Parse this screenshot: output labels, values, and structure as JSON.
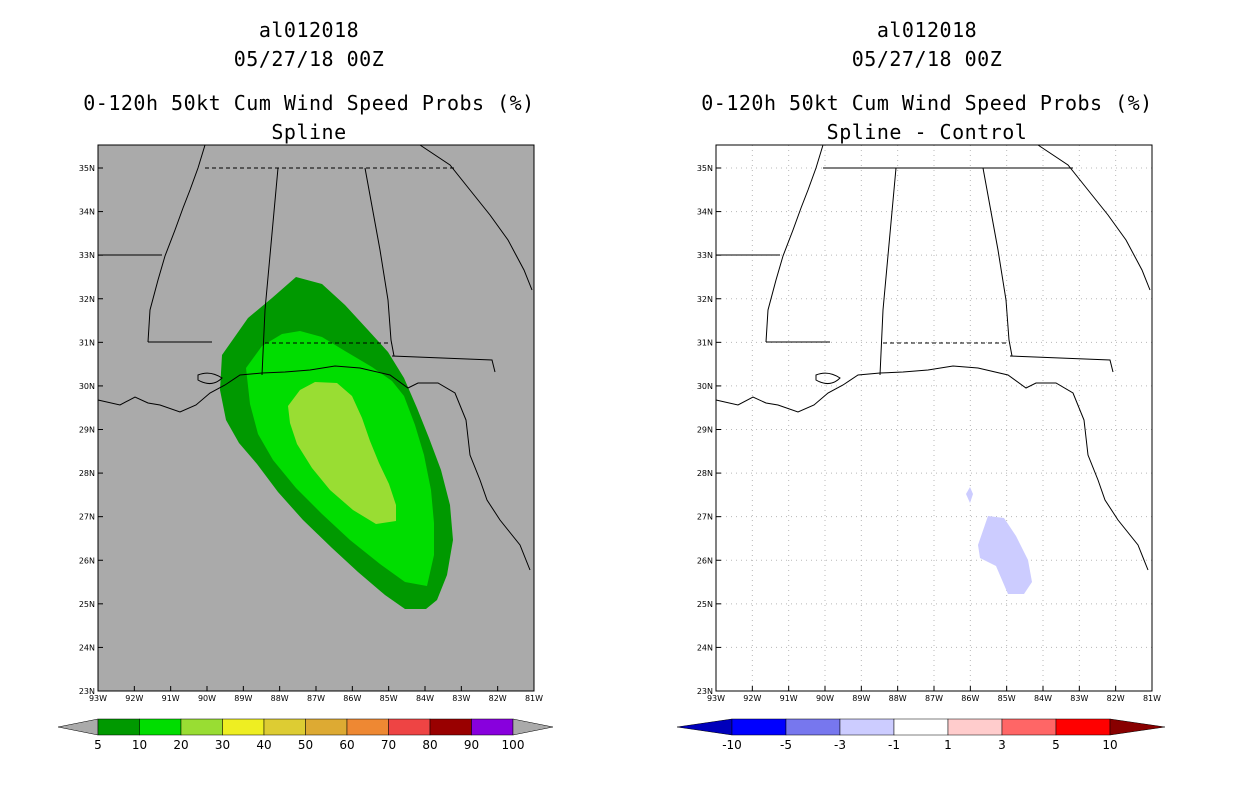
{
  "left": {
    "title_line1": "al012018",
    "title_line2": "05/27/18 00Z",
    "title_line3": "0-120h 50kt Cum Wind Speed Probs (%)",
    "title_line4": "Spline",
    "colorbar_labels": [
      "5",
      "10",
      "20",
      "30",
      "40",
      "50",
      "60",
      "70",
      "80",
      "90",
      "100"
    ],
    "colorbar_colors": [
      "#009900",
      "#00dd00",
      "#99dd33",
      "#eeee22",
      "#ddcc33",
      "#ddaa33",
      "#ee8833",
      "#ee4444",
      "#990000",
      "#8800dd"
    ]
  },
  "right": {
    "title_line1": "al012018",
    "title_line2": "05/27/18 00Z",
    "title_line3": "0-120h 50kt Cum Wind Speed Probs (%)",
    "title_line4": "Spline - Control",
    "colorbar_labels": [
      "-10",
      "-5",
      "-3",
      "-1",
      "1",
      "3",
      "5",
      "10"
    ],
    "colorbar_colors": [
      "#0000bb",
      "#0000ff",
      "#7777ee",
      "#ccccff",
      "#ffffff",
      "#ffcccc",
      "#ff6666",
      "#ff0000",
      "#880000"
    ]
  },
  "axes": {
    "lon_labels": [
      "93W",
      "92W",
      "91W",
      "90W",
      "89W",
      "88W",
      "87W",
      "86W",
      "85W",
      "84W",
      "83W",
      "82W",
      "81W"
    ],
    "lat_labels": [
      "23N",
      "24N",
      "25N",
      "26N",
      "27N",
      "28N",
      "29N",
      "30N",
      "31N",
      "32N",
      "33N",
      "34N",
      "35N"
    ]
  },
  "colors": {
    "land_background": "#aaaaaa",
    "prob_5": "#009900",
    "prob_10": "#00dd00",
    "prob_20": "#99dd33",
    "diff_neg_small": "#ccccff"
  }
}
